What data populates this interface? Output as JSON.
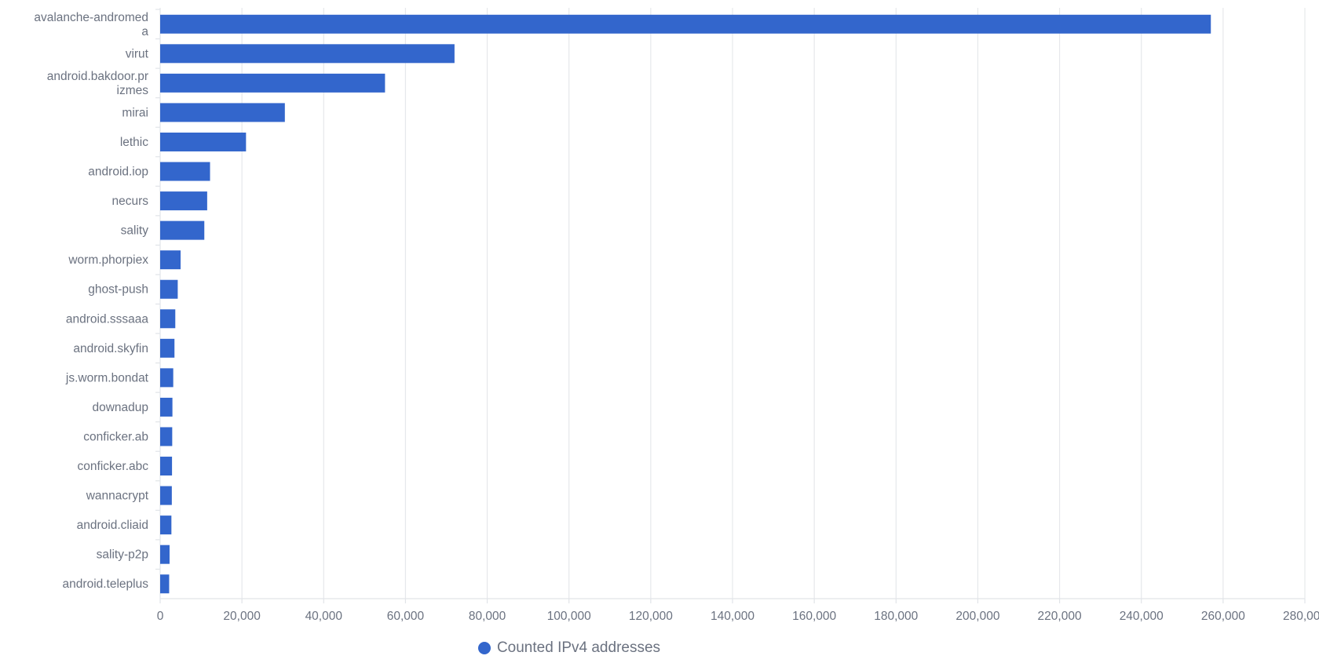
{
  "chart_data": {
    "type": "bar",
    "orientation": "horizontal",
    "categories": [
      "avalanche-andromeda",
      "virut",
      "android.bakdoor.prizmes",
      "mirai",
      "lethic",
      "android.iop",
      "necurs",
      "sality",
      "worm.phorpiex",
      "ghost-push",
      "android.sssaaa",
      "android.skyfin",
      "js.worm.bondat",
      "downadup",
      "conficker.ab",
      "conficker.abc",
      "wannacrypt",
      "android.cliaid",
      "sality-p2p",
      "android.teleplus"
    ],
    "category_label_lines": [
      [
        "avalanche-andromed",
        "a"
      ],
      [
        "virut"
      ],
      [
        "android.bakdoor.pr",
        "izmes"
      ],
      [
        "mirai"
      ],
      [
        "lethic"
      ],
      [
        "android.iop"
      ],
      [
        "necurs"
      ],
      [
        "sality"
      ],
      [
        "worm.phorpiex"
      ],
      [
        "ghost-push"
      ],
      [
        "android.sssaaa"
      ],
      [
        "android.skyfin"
      ],
      [
        "js.worm.bondat"
      ],
      [
        "downadup"
      ],
      [
        "conficker.ab"
      ],
      [
        "conficker.abc"
      ],
      [
        "wannacrypt"
      ],
      [
        "android.cliaid"
      ],
      [
        "sality-p2p"
      ],
      [
        "android.teleplus"
      ]
    ],
    "series": [
      {
        "name": "Counted IPv4 addresses",
        "color": "#3366cc",
        "values": [
          257000,
          72000,
          55000,
          30500,
          21000,
          12200,
          11500,
          10800,
          5000,
          4300,
          3700,
          3500,
          3200,
          3000,
          2950,
          2900,
          2850,
          2750,
          2300,
          2200
        ]
      }
    ],
    "xlim": [
      0,
      280000
    ],
    "xticks": [
      0,
      20000,
      40000,
      60000,
      80000,
      100000,
      120000,
      140000,
      160000,
      180000,
      200000,
      220000,
      240000,
      260000,
      280000
    ],
    "xtick_labels": [
      "0",
      "20,000",
      "40,000",
      "60,000",
      "80,000",
      "100,000",
      "120,000",
      "140,000",
      "160,000",
      "180,000",
      "200,000",
      "220,000",
      "240,000",
      "260,000",
      "280,000"
    ],
    "grid": "vertical",
    "legend_position": "bottom"
  },
  "legend": {
    "label": "Counted IPv4 addresses",
    "color": "#3366cc"
  }
}
